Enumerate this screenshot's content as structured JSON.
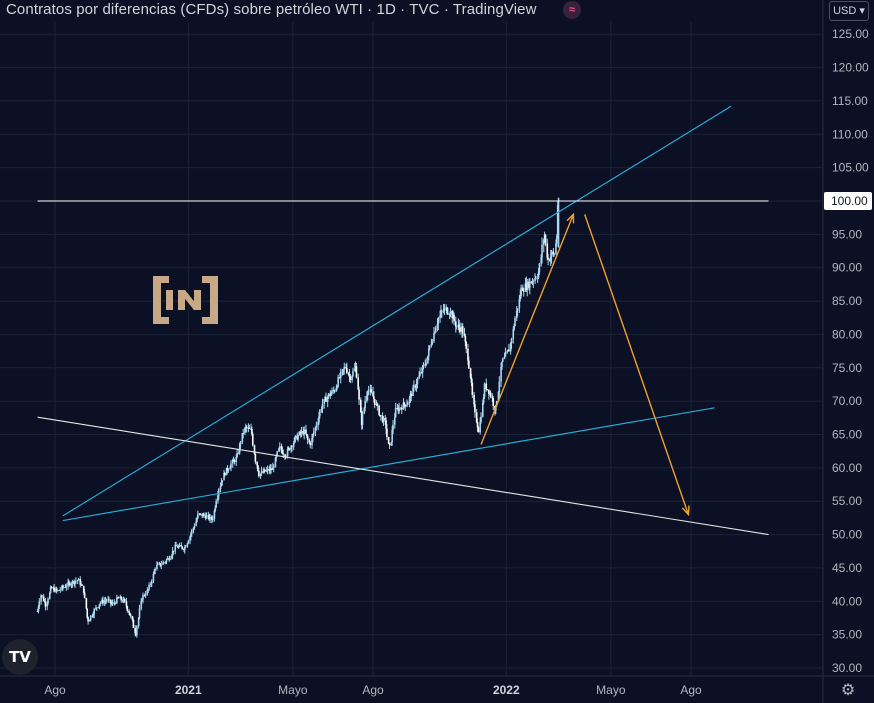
{
  "header": {
    "title": "Contratos por diferencias (CFDs) sobre petróleo WTI · 1D · TVC · TradingView",
    "badge_icon": "waves-icon",
    "currency": "USD"
  },
  "footer": {
    "tv_logo_text": "TV",
    "settings_icon": "gear-icon"
  },
  "colors": {
    "background": "#0c1024",
    "grid": "#1c2236",
    "candles": "#a9d8f0",
    "channel_lines": "#2aa8d0",
    "resistance_line": "#ffffff",
    "downtrend_line": "#e6e6e6",
    "projection_arrows": "#f0a030",
    "watermark": "#c7a987"
  },
  "watermark_text": "[IN]",
  "chart_data": {
    "type": "line",
    "title": "Contratos por diferencias (CFDs) sobre petróleo WTI · 1D · TVC · TradingView",
    "xlabel": "",
    "ylabel": "",
    "x_range": [
      "2020-07-12",
      "2022-10-29"
    ],
    "ylim": [
      28.5,
      129
    ],
    "y_ticks": [
      30,
      35,
      40,
      45,
      50,
      55,
      60,
      65,
      70,
      75,
      80,
      85,
      90,
      95,
      100,
      105,
      110,
      115,
      120,
      125
    ],
    "y_tick_labels": [
      "30.00",
      "35.00",
      "40.00",
      "45.00",
      "50.00",
      "55.00",
      "60.00",
      "65.00",
      "70.00",
      "75.00",
      "80.00",
      "85.00",
      "90.00",
      "95.00",
      "100.00",
      "105.00",
      "110.00",
      "115.00",
      "120.00",
      "125.00"
    ],
    "x_ticks": [
      {
        "date": "2020-08-01",
        "label": "Ago"
      },
      {
        "date": "2021-01-01",
        "label": "2021"
      },
      {
        "date": "2021-05-01",
        "label": "Mayo"
      },
      {
        "date": "2021-08-01",
        "label": "Ago"
      },
      {
        "date": "2022-01-01",
        "label": "2022"
      },
      {
        "date": "2022-05-01",
        "label": "Mayo"
      },
      {
        "date": "2022-08-01",
        "label": "Ago"
      }
    ],
    "grid": true,
    "price_marker": {
      "value": 100,
      "label": "100.00"
    },
    "series": [
      {
        "values_type": "close",
        "points": [
          [
            "2020-07-12",
            38.5
          ],
          [
            "2020-07-16",
            41.0
          ],
          [
            "2020-07-22",
            39.5
          ],
          [
            "2020-07-28",
            42.0
          ],
          [
            "2020-08-04",
            41.5
          ],
          [
            "2020-08-12",
            42.2
          ],
          [
            "2020-08-20",
            42.8
          ],
          [
            "2020-08-28",
            43.2
          ],
          [
            "2020-09-03",
            41.8
          ],
          [
            "2020-09-08",
            37.0
          ],
          [
            "2020-09-15",
            38.5
          ],
          [
            "2020-09-22",
            39.8
          ],
          [
            "2020-09-30",
            40.2
          ],
          [
            "2020-10-06",
            39.5
          ],
          [
            "2020-10-13",
            40.5
          ],
          [
            "2020-10-20",
            40.0
          ],
          [
            "2020-10-28",
            37.5
          ],
          [
            "2020-11-02",
            35.0
          ],
          [
            "2020-11-09",
            40.5
          ],
          [
            "2020-11-17",
            41.8
          ],
          [
            "2020-11-25",
            45.2
          ],
          [
            "2020-12-02",
            45.6
          ],
          [
            "2020-12-10",
            46.5
          ],
          [
            "2020-12-18",
            48.2
          ],
          [
            "2020-12-28",
            48.0
          ],
          [
            "2021-01-06",
            50.6
          ],
          [
            "2021-01-13",
            53.0
          ],
          [
            "2021-01-21",
            52.8
          ],
          [
            "2021-01-29",
            52.2
          ],
          [
            "2021-02-05",
            56.8
          ],
          [
            "2021-02-12",
            59.2
          ],
          [
            "2021-02-19",
            60.5
          ],
          [
            "2021-02-26",
            61.5
          ],
          [
            "2021-03-05",
            65.2
          ],
          [
            "2021-03-08",
            66.0
          ],
          [
            "2021-03-15",
            65.5
          ],
          [
            "2021-03-19",
            61.5
          ],
          [
            "2021-03-24",
            59.0
          ],
          [
            "2021-03-31",
            59.5
          ],
          [
            "2021-04-08",
            59.8
          ],
          [
            "2021-04-16",
            63.0
          ],
          [
            "2021-04-23",
            62.0
          ],
          [
            "2021-04-30",
            63.5
          ],
          [
            "2021-05-07",
            64.8
          ],
          [
            "2021-05-14",
            65.5
          ],
          [
            "2021-05-21",
            63.5
          ],
          [
            "2021-05-28",
            66.3
          ],
          [
            "2021-06-04",
            69.5
          ],
          [
            "2021-06-11",
            70.8
          ],
          [
            "2021-06-18",
            71.6
          ],
          [
            "2021-06-25",
            73.8
          ],
          [
            "2021-07-01",
            75.2
          ],
          [
            "2021-07-06",
            73.5
          ],
          [
            "2021-07-13",
            75.2
          ],
          [
            "2021-07-19",
            66.5
          ],
          [
            "2021-07-26",
            72.0
          ],
          [
            "2021-08-02",
            70.5
          ],
          [
            "2021-08-09",
            68.0
          ],
          [
            "2021-08-16",
            66.5
          ],
          [
            "2021-08-20",
            62.5
          ],
          [
            "2021-08-27",
            68.5
          ],
          [
            "2021-09-03",
            69.2
          ],
          [
            "2021-09-10",
            69.8
          ],
          [
            "2021-09-17",
            71.8
          ],
          [
            "2021-09-24",
            73.9
          ],
          [
            "2021-10-01",
            75.8
          ],
          [
            "2021-10-08",
            79.3
          ],
          [
            "2021-10-15",
            82.3
          ],
          [
            "2021-10-22",
            83.8
          ],
          [
            "2021-10-29",
            83.5
          ],
          [
            "2021-11-05",
            81.3
          ],
          [
            "2021-11-12",
            80.8
          ],
          [
            "2021-11-19",
            76.1
          ],
          [
            "2021-11-26",
            68.2
          ],
          [
            "2021-12-01",
            65.6
          ],
          [
            "2021-12-08",
            72.4
          ],
          [
            "2021-12-15",
            70.9
          ],
          [
            "2021-12-20",
            68.5
          ],
          [
            "2021-12-27",
            75.6
          ],
          [
            "2022-01-05",
            77.8
          ],
          [
            "2022-01-12",
            82.6
          ],
          [
            "2022-01-19",
            86.9
          ],
          [
            "2022-01-26",
            87.4
          ],
          [
            "2022-02-02",
            88.3
          ],
          [
            "2022-02-08",
            89.4
          ],
          [
            "2022-02-14",
            95.4
          ],
          [
            "2022-02-18",
            91.1
          ],
          [
            "2022-02-23",
            92.1
          ],
          [
            "2022-02-25",
            91.6
          ],
          [
            "2022-03-01",
            95.5
          ],
          [
            "2022-03-02",
            100.5
          ]
        ]
      }
    ],
    "annotations": [
      {
        "name": "upper-channel-line",
        "points": [
          [
            "2020-08-10",
            52.8
          ],
          [
            "2022-09-16",
            114.2
          ]
        ]
      },
      {
        "name": "lower-channel-line",
        "points": [
          [
            "2020-08-10",
            52.1
          ],
          [
            "2022-08-28",
            69.0
          ]
        ]
      },
      {
        "name": "downtrend-line",
        "points": [
          [
            "2020-07-12",
            67.6
          ],
          [
            "2022-10-29",
            50.0
          ]
        ]
      },
      {
        "name": "resistance-line-100",
        "points": [
          [
            "2020-07-12",
            100.0
          ],
          [
            "2022-10-29",
            100.0
          ]
        ]
      },
      {
        "name": "projection-up-arrow",
        "points": [
          [
            "2021-12-03",
            63.5
          ],
          [
            "2022-03-19",
            98.0
          ]
        ]
      },
      {
        "name": "projection-down-arrow",
        "points": [
          [
            "2022-04-01",
            98.0
          ],
          [
            "2022-07-29",
            53.0
          ]
        ]
      }
    ]
  }
}
